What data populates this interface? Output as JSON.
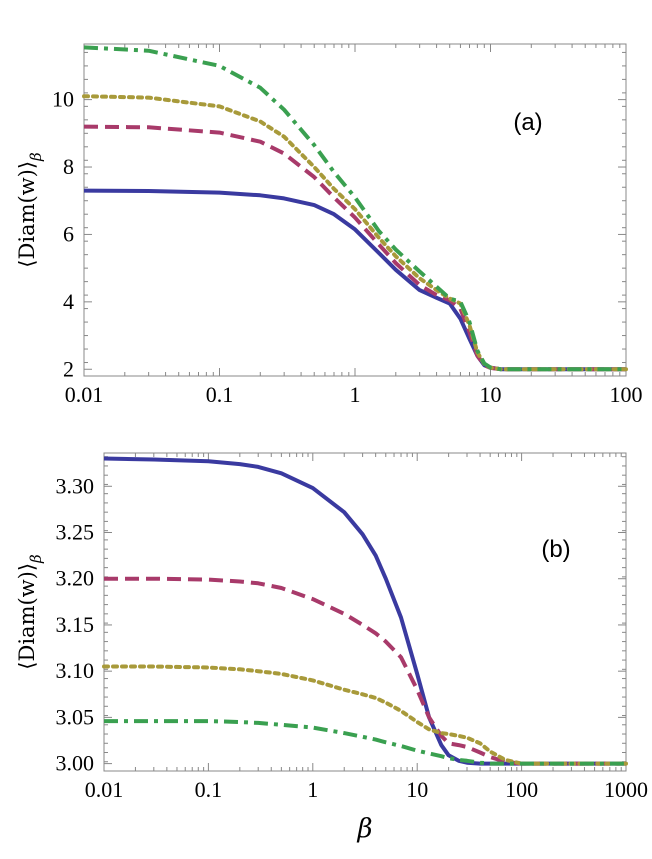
{
  "chart_data": [
    {
      "type": "line",
      "panel_label": "(a)",
      "xlabel": "",
      "ylabel": "⟨Diam(w)⟩",
      "ylabel_sub": "β",
      "xscale": "log",
      "xlim": [
        0.01,
        100
      ],
      "ylim": [
        1.8,
        11.65
      ],
      "xticks": [
        0.01,
        0.1,
        1,
        10,
        100
      ],
      "xtick_labels": [
        "0.01",
        "0.1",
        "1",
        "10",
        "100"
      ],
      "yticks": [
        2,
        4,
        6,
        8,
        10
      ],
      "ytick_labels": [
        "2",
        "4",
        "6",
        "8",
        "10"
      ],
      "series": [
        {
          "name": "solid",
          "color": "#3a3aa0",
          "style": "solid",
          "x": [
            0.01,
            0.03,
            0.1,
            0.2,
            0.3,
            0.5,
            0.7,
            1,
            1.5,
            2,
            3,
            4,
            5,
            6,
            7,
            8,
            9,
            10,
            12,
            20,
            50,
            100
          ],
          "y": [
            7.3,
            7.29,
            7.24,
            7.16,
            7.07,
            6.87,
            6.6,
            6.15,
            5.45,
            4.95,
            4.35,
            4.12,
            3.95,
            3.5,
            2.9,
            2.4,
            2.12,
            2.05,
            2.0,
            2.0,
            2.0,
            2.0
          ]
        },
        {
          "name": "dashed",
          "color": "#a83a6a",
          "style": "dashed",
          "x": [
            0.01,
            0.03,
            0.1,
            0.2,
            0.3,
            0.5,
            0.7,
            1,
            1.5,
            2,
            3,
            4,
            5,
            6,
            7,
            8,
            9,
            10,
            12,
            20,
            50,
            100
          ],
          "y": [
            9.2,
            9.18,
            9.02,
            8.75,
            8.4,
            7.7,
            7.1,
            6.5,
            5.7,
            5.15,
            4.5,
            4.2,
            4.05,
            3.8,
            3.1,
            2.4,
            2.12,
            2.04,
            2.0,
            2.0,
            2.0,
            2.0
          ]
        },
        {
          "name": "dotted",
          "color": "#a89a3a",
          "style": "dotted",
          "x": [
            0.01,
            0.03,
            0.1,
            0.2,
            0.3,
            0.5,
            0.7,
            1,
            1.5,
            2,
            3,
            4,
            5,
            6,
            7,
            8,
            9,
            10,
            12,
            20,
            50,
            100
          ],
          "y": [
            10.1,
            10.06,
            9.8,
            9.35,
            8.9,
            8.0,
            7.35,
            6.75,
            5.9,
            5.35,
            4.7,
            4.35,
            4.1,
            3.95,
            3.3,
            2.5,
            2.15,
            2.05,
            2.0,
            2.0,
            2.0,
            2.0
          ]
        },
        {
          "name": "dash-dot",
          "color": "#3aa050",
          "style": "dashdot",
          "x": [
            0.01,
            0.03,
            0.1,
            0.2,
            0.3,
            0.5,
            0.7,
            1,
            1.5,
            2,
            3,
            4,
            5,
            6,
            7,
            8,
            9,
            10,
            12,
            20,
            50,
            100
          ],
          "y": [
            11.55,
            11.45,
            11.0,
            10.35,
            9.7,
            8.65,
            7.85,
            7.1,
            6.1,
            5.55,
            4.9,
            4.45,
            4.1,
            4.0,
            3.4,
            2.55,
            2.17,
            2.05,
            2.0,
            2.0,
            2.0,
            2.0
          ]
        }
      ]
    },
    {
      "type": "line",
      "panel_label": "(b)",
      "xlabel": "β",
      "ylabel": "⟨Diam(w)⟩",
      "ylabel_sub": "β",
      "xscale": "log",
      "xlim": [
        0.01,
        1000
      ],
      "ylim": [
        2.992,
        3.336
      ],
      "xticks": [
        0.01,
        0.1,
        1,
        10,
        100,
        1000
      ],
      "xtick_labels": [
        "0.01",
        "0.1",
        "1",
        "10",
        "100",
        "1000"
      ],
      "yticks": [
        3.0,
        3.05,
        3.1,
        3.15,
        3.2,
        3.25,
        3.3
      ],
      "ytick_labels": [
        "3.00",
        "3.05",
        "3.10",
        "3.15",
        "3.20",
        "3.25",
        "3.30"
      ],
      "series": [
        {
          "name": "solid",
          "color": "#3a3aa0",
          "style": "solid",
          "x": [
            0.01,
            0.03,
            0.1,
            0.2,
            0.3,
            0.5,
            1,
            2,
            3,
            4,
            5,
            7,
            10,
            13,
            17,
            20,
            25,
            30,
            40,
            50,
            100,
            1000
          ],
          "y": [
            3.33,
            3.329,
            3.327,
            3.324,
            3.321,
            3.314,
            3.298,
            3.272,
            3.248,
            3.225,
            3.2,
            3.158,
            3.097,
            3.05,
            3.02,
            3.009,
            3.003,
            3.001,
            3.0,
            3.0,
            3.0,
            3.0
          ]
        },
        {
          "name": "dashed",
          "color": "#a83a6a",
          "style": "dashed",
          "x": [
            0.01,
            0.03,
            0.1,
            0.2,
            0.3,
            0.5,
            1,
            2,
            3,
            4,
            5,
            7,
            10,
            13,
            17,
            20,
            25,
            30,
            40,
            50,
            70,
            100,
            1000
          ],
          "y": [
            3.2,
            3.2,
            3.199,
            3.197,
            3.195,
            3.19,
            3.178,
            3.162,
            3.15,
            3.141,
            3.132,
            3.115,
            3.08,
            3.05,
            3.03,
            3.022,
            3.02,
            3.018,
            3.012,
            3.007,
            3.002,
            3.0,
            3.0
          ]
        },
        {
          "name": "dotted",
          "color": "#a89a3a",
          "style": "dotted",
          "x": [
            0.01,
            0.03,
            0.1,
            0.2,
            0.3,
            0.5,
            1,
            2,
            3,
            4,
            5,
            7,
            10,
            13,
            17,
            20,
            25,
            30,
            40,
            50,
            70,
            100,
            1000
          ],
          "y": [
            3.105,
            3.105,
            3.104,
            3.102,
            3.1,
            3.097,
            3.09,
            3.08,
            3.075,
            3.071,
            3.066,
            3.057,
            3.045,
            3.037,
            3.033,
            3.032,
            3.03,
            3.028,
            3.022,
            3.013,
            3.004,
            3.0,
            3.0
          ]
        },
        {
          "name": "dash-dot",
          "color": "#3aa050",
          "style": "dashdot",
          "x": [
            0.01,
            0.03,
            0.1,
            0.2,
            0.3,
            0.5,
            1,
            2,
            3,
            4,
            5,
            7,
            10,
            13,
            17,
            20,
            25,
            30,
            40,
            50,
            70,
            100,
            1000
          ],
          "y": [
            3.046,
            3.046,
            3.046,
            3.045,
            3.044,
            3.042,
            3.039,
            3.033,
            3.029,
            3.026,
            3.023,
            3.019,
            3.014,
            3.011,
            3.008,
            3.006,
            3.004,
            3.003,
            3.001,
            3.0,
            3.0,
            3.0,
            3.0
          ]
        }
      ]
    }
  ]
}
